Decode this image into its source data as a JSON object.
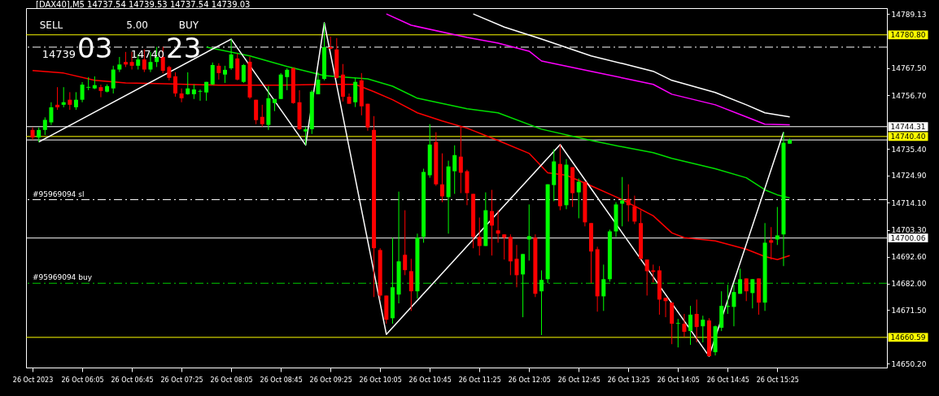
{
  "chart_data": {
    "type": "candlestick",
    "title": "[DAX40],M5  14737.54 14739.53 14737.54 14739.03",
    "x": [
      "2023-10-26T05:25",
      "2023-10-26T05:30",
      "2023-10-26T05:35",
      "2023-10-26T05:40",
      "2023-10-26T05:45",
      "2023-10-26T05:50",
      "2023-10-26T05:55",
      "2023-10-26T06:00",
      "2023-10-26T06:05",
      "2023-10-26T06:10",
      "2023-10-26T06:15",
      "2023-10-26T06:20",
      "2023-10-26T06:25",
      "2023-10-26T06:30",
      "2023-10-26T06:35",
      "2023-10-26T06:40",
      "2023-10-26T06:45",
      "2023-10-26T06:50",
      "2023-10-26T06:55",
      "2023-10-26T07:00",
      "2023-10-26T07:05",
      "2023-10-26T07:10",
      "2023-10-26T07:15",
      "2023-10-26T07:20",
      "2023-10-26T07:25",
      "2023-10-26T07:30",
      "2023-10-26T07:35",
      "2023-10-26T07:40",
      "2023-10-26T07:45",
      "2023-10-26T07:50",
      "2023-10-26T07:55",
      "2023-10-26T08:00",
      "2023-10-26T08:05",
      "2023-10-26T08:10",
      "2023-10-26T08:15",
      "2023-10-26T08:20",
      "2023-10-26T08:25",
      "2023-10-26T08:30",
      "2023-10-26T08:35",
      "2023-10-26T08:40",
      "2023-10-26T08:45",
      "2023-10-26T08:50",
      "2023-10-26T08:55",
      "2023-10-26T09:00",
      "2023-10-26T09:05",
      "2023-10-26T09:10",
      "2023-10-26T09:15",
      "2023-10-26T09:20",
      "2023-10-26T09:25",
      "2023-10-26T09:30",
      "2023-10-26T09:35",
      "2023-10-26T09:40",
      "2023-10-26T09:45",
      "2023-10-26T09:50",
      "2023-10-26T09:55",
      "2023-10-26T10:00",
      "2023-10-26T10:05",
      "2023-10-26T10:10",
      "2023-10-26T10:15",
      "2023-10-26T10:20",
      "2023-10-26T10:25",
      "2023-10-26T10:30",
      "2023-10-26T10:35",
      "2023-10-26T10:40",
      "2023-10-26T10:45",
      "2023-10-26T10:50",
      "2023-10-26T10:55",
      "2023-10-26T11:00",
      "2023-10-26T11:05",
      "2023-10-26T11:10",
      "2023-10-26T11:15",
      "2023-10-26T11:20",
      "2023-10-26T11:25",
      "2023-10-26T11:30",
      "2023-10-26T11:35",
      "2023-10-26T11:40",
      "2023-10-26T11:45",
      "2023-10-26T11:50",
      "2023-10-26T11:55",
      "2023-10-26T12:00",
      "2023-10-26T12:05",
      "2023-10-26T12:10",
      "2023-10-26T12:15",
      "2023-10-26T12:20",
      "2023-10-26T12:25",
      "2023-10-26T12:30",
      "2023-10-26T12:35",
      "2023-10-26T12:40",
      "2023-10-26T12:45",
      "2023-10-26T12:50",
      "2023-10-26T12:55",
      "2023-10-26T13:00",
      "2023-10-26T13:05",
      "2023-10-26T13:10",
      "2023-10-26T13:15",
      "2023-10-26T13:20",
      "2023-10-26T13:25",
      "2023-10-26T13:30",
      "2023-10-26T13:35",
      "2023-10-26T13:40",
      "2023-10-26T13:45",
      "2023-10-26T13:50",
      "2023-10-26T13:55",
      "2023-10-26T14:00",
      "2023-10-26T14:05",
      "2023-10-26T14:10",
      "2023-10-26T14:15",
      "2023-10-26T14:20",
      "2023-10-26T14:25",
      "2023-10-26T14:30",
      "2023-10-26T14:35",
      "2023-10-26T14:40",
      "2023-10-26T14:45",
      "2023-10-26T14:50",
      "2023-10-26T14:55",
      "2023-10-26T15:00",
      "2023-10-26T15:05",
      "2023-10-26T15:10",
      "2023-10-26T15:15",
      "2023-10-26T15:20",
      "2023-10-26T15:25",
      "2023-10-26T15:30",
      "2023-10-26T15:35"
    ],
    "ohlc": [
      [
        14743,
        14744,
        14739,
        14740
      ],
      [
        14740,
        14744,
        14738.2,
        14743
      ],
      [
        14743,
        14748,
        14741,
        14747
      ],
      [
        14746,
        14754,
        14745,
        14752
      ],
      [
        14753,
        14760,
        14751,
        14752
      ],
      [
        14753,
        14760,
        14752,
        14754
      ],
      [
        14755,
        14758,
        14751,
        14753
      ],
      [
        14752,
        14758,
        14751,
        14755
      ],
      [
        14755,
        14762,
        14754,
        14761
      ],
      [
        14759.8,
        14764,
        14758.8,
        14760.1
      ],
      [
        14759.5,
        14764.3,
        14759.2,
        14760.8
      ],
      [
        14760,
        14761,
        14756,
        14758.5
      ],
      [
        14758.2,
        14761.1,
        14757.9,
        14760.4
      ],
      [
        14759.5,
        14768.5,
        14757.5,
        14767
      ],
      [
        14767,
        14772,
        14766,
        14769
      ],
      [
        14770,
        14774,
        14768,
        14769
      ],
      [
        14770,
        14774,
        14767,
        14768.5
      ],
      [
        14768.5,
        14773,
        14767,
        14771
      ],
      [
        14771,
        14775,
        14766,
        14767
      ],
      [
        14767,
        14774,
        14766,
        14770
      ],
      [
        14770,
        14776,
        14768,
        14772
      ],
      [
        14772,
        14776,
        14765.5,
        14766.5
      ],
      [
        14768,
        14768.5,
        14762.7,
        14763.7
      ],
      [
        14764.3,
        14765.9,
        14756.2,
        14757.5
      ],
      [
        14757.5,
        14759.5,
        14754,
        14755.6
      ],
      [
        14757.2,
        14765.9,
        14757,
        14759.5
      ],
      [
        14757.2,
        14761.1,
        14755.3,
        14759.1
      ],
      [
        14758.2,
        14759.1,
        14754.6,
        14758.5
      ],
      [
        14757.9,
        14762.1,
        14754.6,
        14762.1
      ],
      [
        14761.1,
        14769.8,
        14760.8,
        14768.8
      ],
      [
        14768.5,
        14769.5,
        14763,
        14765.6
      ],
      [
        14765,
        14768.5,
        14761.7,
        14766.9
      ],
      [
        14767.5,
        14779.1,
        14766.9,
        14773
      ],
      [
        14771.4,
        14773.3,
        14762.7,
        14763
      ],
      [
        14762.1,
        14769.2,
        14761.7,
        14768.8
      ],
      [
        14770.1,
        14772.1,
        14755.3,
        14755.9
      ],
      [
        14755,
        14755,
        14745.3,
        14746.9
      ],
      [
        14748.2,
        14753,
        14744.3,
        14745.3
      ],
      [
        14745,
        14760.4,
        14743,
        14755.6
      ],
      [
        14753.7,
        14755.3,
        14750.5,
        14755.3
      ],
      [
        14755.3,
        14765.6,
        14755.3,
        14765
      ],
      [
        14764,
        14767.5,
        14758.8,
        14766.9
      ],
      [
        14767.5,
        14767.9,
        14753.4,
        14753.7
      ],
      [
        14754,
        14758.8,
        14743,
        14743.3
      ],
      [
        14742.4,
        14744.3,
        14737,
        14743.3
      ],
      [
        14743.3,
        14758.8,
        14741.4,
        14758.2
      ],
      [
        14757.2,
        14765.9,
        14757.2,
        14763
      ],
      [
        14763.3,
        14785.6,
        14762.7,
        14775.9
      ],
      [
        14775.9,
        14780.1,
        14775,
        14775.3
      ],
      [
        14775,
        14779.5,
        14763.3,
        14763.7
      ],
      [
        14765,
        14769.2,
        14754.3,
        14756.2
      ],
      [
        14756.2,
        14757.5,
        14753.4,
        14753.4
      ],
      [
        14754,
        14763.7,
        14752.1,
        14762.1
      ],
      [
        14762.7,
        14765.6,
        14748.8,
        14752.4
      ],
      [
        14753.4,
        14753.4,
        14742.7,
        14744
      ],
      [
        14743,
        14748.5,
        14676.6,
        14696
      ],
      [
        14695.3,
        14696,
        14675.6,
        14677.2
      ],
      [
        14677.2,
        14677.2,
        14666,
        14667.6
      ],
      [
        14668.2,
        14700.2,
        14666,
        14680.5
      ],
      [
        14677.6,
        14718.5,
        14674.1,
        14690.8
      ],
      [
        14693.4,
        14711.1,
        14685.3,
        14687.3
      ],
      [
        14686.9,
        14691.8,
        14671.1,
        14678.9
      ],
      [
        14678.9,
        14701.8,
        14676,
        14700.2
      ],
      [
        14700.5,
        14727.6,
        14698.2,
        14726.3
      ],
      [
        14725,
        14745.3,
        14724,
        14737.2
      ],
      [
        14738.2,
        14742.1,
        14720.8,
        14721.4
      ],
      [
        14721.4,
        14733.7,
        14714.3,
        14716.6
      ],
      [
        14716.3,
        14730.8,
        14701.8,
        14728.5
      ],
      [
        14726.6,
        14736.9,
        14717.6,
        14733
      ],
      [
        14732.4,
        14744.6,
        14717.9,
        14726
      ],
      [
        14726.6,
        14727.2,
        14713.1,
        14717.9
      ],
      [
        14717.6,
        14717.6,
        14696,
        14700.5
      ],
      [
        14700.5,
        14708.2,
        14693.1,
        14696.9
      ],
      [
        14696.9,
        14718.2,
        14696.9,
        14711.1
      ],
      [
        14710.8,
        14719.2,
        14693.1,
        14705
      ],
      [
        14703.1,
        14711.1,
        14698.2,
        14701.8
      ],
      [
        14701.5,
        14701.5,
        14691.5,
        14700.2
      ],
      [
        14700.5,
        14701.5,
        14685.3,
        14690.8
      ],
      [
        14691.8,
        14697.3,
        14680.5,
        14685.3
      ],
      [
        14685.6,
        14693.7,
        14668.6,
        14693.7
      ],
      [
        14699.5,
        14713.4,
        14691.1,
        14700.8
      ],
      [
        14700.2,
        14701.5,
        14676.6,
        14677.9
      ],
      [
        14678.9,
        14687.2,
        14661.5,
        14683.4
      ],
      [
        14683.7,
        14721.4,
        14682.1,
        14721.4
      ],
      [
        14721.1,
        14735.3,
        14714.7,
        14730.5
      ],
      [
        14729.5,
        14737.2,
        14711.1,
        14712.7
      ],
      [
        14713.1,
        14731.4,
        14711.5,
        14729.2
      ],
      [
        14728.2,
        14728.2,
        14712.4,
        14717.9
      ],
      [
        14718.2,
        14723.7,
        14707.9,
        14722.4
      ],
      [
        14722.4,
        14722.4,
        14704.7,
        14706.3
      ],
      [
        14706,
        14706,
        14682.1,
        14694.7
      ],
      [
        14695.6,
        14696.6,
        14670.8,
        14676.9
      ],
      [
        14676.9,
        14689.5,
        14671.1,
        14683.7
      ],
      [
        14683.7,
        14703.4,
        14682.7,
        14702.7
      ],
      [
        14702.7,
        14714.3,
        14700.5,
        14713.4
      ],
      [
        14713.7,
        14724.3,
        14704.7,
        14715
      ],
      [
        14715.6,
        14721.4,
        14706.6,
        14713.1
      ],
      [
        14712.7,
        14716.9,
        14705.6,
        14706.6
      ],
      [
        14706,
        14711.1,
        14691.5,
        14691.8
      ],
      [
        14691.5,
        14691.5,
        14677.2,
        14686.9
      ],
      [
        14687.2,
        14689.5,
        14682.4,
        14686.6
      ],
      [
        14687.2,
        14688.9,
        14669.6,
        14675.6
      ],
      [
        14676.3,
        14676.3,
        14668.6,
        14675
      ],
      [
        14674.4,
        14674.4,
        14657.9,
        14666
      ],
      [
        14666,
        14667.9,
        14656.6,
        14666.3
      ],
      [
        14666,
        14669.9,
        14660.8,
        14662.8
      ],
      [
        14663.1,
        14673.1,
        14657.6,
        14669.6
      ],
      [
        14669.9,
        14675.6,
        14658.6,
        14664.7
      ],
      [
        14665,
        14669.2,
        14658.6,
        14667.6
      ],
      [
        14667.3,
        14668.2,
        14653.1,
        14653.1
      ],
      [
        14654.7,
        14665.3,
        14653.4,
        14665
      ],
      [
        14664.4,
        14678.9,
        14663.1,
        14673.1
      ],
      [
        14672.7,
        14681.5,
        14669.9,
        14673.1
      ],
      [
        14672.7,
        14681.5,
        14665,
        14678.6
      ],
      [
        14677.9,
        14687.9,
        14677.9,
        14683.7
      ],
      [
        14684,
        14684,
        14675,
        14678.9
      ],
      [
        14678.2,
        14683.7,
        14672.1,
        14683.7
      ],
      [
        14684,
        14684,
        14669.6,
        14674.4
      ],
      [
        14674.4,
        14706,
        14671.1,
        14698.2
      ],
      [
        14699.2,
        14704.4,
        14691.5,
        14698.2
      ],
      [
        14699.5,
        14712.4,
        14697.3,
        14701.1
      ],
      [
        14701.5,
        14742.1,
        14688.9,
        14737.9
      ],
      [
        14737.54,
        14739.53,
        14737.54,
        14739.03
      ]
    ],
    "colors": [
      "#ff0000",
      "#00ff00",
      "#00ff00",
      "#00ff00",
      "#ff0000",
      "#00ff00",
      "#ff0000",
      "#00ff00",
      "#00ff00",
      "#00ff00",
      "#00ff00",
      "#ff0000",
      "#00ff00",
      "#00ff00",
      "#00ff00",
      "#ff0000",
      "#ff0000",
      "#00ff00",
      "#ff0000",
      "#00ff00",
      "#00ff00",
      "#ff0000",
      "#ff0000",
      "#ff0000",
      "#ff0000",
      "#00ff00",
      "#00ff00",
      "#00ff00",
      "#00ff00",
      "#00ff00",
      "#ff0000",
      "#00ff00",
      "#00ff00",
      "#ff0000",
      "#00ff00",
      "#ff0000",
      "#ff0000",
      "#ff0000",
      "#00ff00",
      "#00ff00",
      "#00ff00",
      "#00ff00",
      "#ff0000",
      "#ff0000",
      "#00ff00",
      "#00ff00",
      "#00ff00",
      "#00ff00",
      "#ff0000",
      "#ff0000",
      "#ff0000",
      "#ff0000",
      "#00ff00",
      "#ff0000",
      "#ff0000",
      "#ff0000",
      "#ff0000",
      "#ff0000",
      "#00ff00",
      "#00ff00",
      "#ff0000",
      "#ff0000",
      "#00ff00",
      "#00ff00",
      "#00ff00",
      "#ff0000",
      "#ff0000",
      "#00ff00",
      "#00ff00",
      "#ff0000",
      "#ff0000",
      "#ff0000",
      "#ff0000",
      "#00ff00",
      "#ff0000",
      "#ff0000",
      "#ff0000",
      "#ff0000",
      "#ff0000",
      "#00ff00",
      "#00ff00",
      "#ff0000",
      "#00ff00",
      "#00ff00",
      "#00ff00",
      "#ff0000",
      "#00ff00",
      "#ff0000",
      "#00ff00",
      "#ff0000",
      "#ff0000",
      "#ff0000",
      "#00ff00",
      "#00ff00",
      "#00ff00",
      "#00ff00",
      "#ff0000",
      "#ff0000",
      "#ff0000",
      "#ff0000",
      "#ff0000",
      "#ff0000",
      "#ff0000",
      "#ff0000",
      "#00ff00",
      "#ff0000",
      "#00ff00",
      "#ff0000",
      "#00ff00",
      "#ff0000",
      "#00ff00",
      "#00ff00",
      "#00ff00",
      "#00ff00",
      "#00ff00",
      "#ff0000",
      "#00ff00",
      "#ff0000",
      "#00ff00",
      "#ff0000",
      "#00ff00",
      "#00ff00",
      "#00ff00"
    ],
    "series": [
      {
        "type": "line",
        "color": "#ff0000",
        "line_style": "solid",
        "x": [
          "2023-10-26T05:25",
          "2023-10-26T05:50",
          "2023-10-26T06:15",
          "2023-10-26T06:40",
          "2023-10-26T07:05",
          "2023-10-26T07:55",
          "2023-10-26T08:45",
          "2023-10-26T09:20",
          "2023-10-26T09:45",
          "2023-10-26T10:00",
          "2023-10-26T10:15",
          "2023-10-26T10:35",
          "2023-10-26T10:55",
          "2023-10-26T11:15",
          "2023-10-26T11:40",
          "2023-10-26T12:05",
          "2023-10-26T12:20",
          "2023-10-26T12:35",
          "2023-10-26T12:55",
          "2023-10-26T13:20",
          "2023-10-26T13:45",
          "2023-10-26T14:00",
          "2023-10-26T14:10",
          "2023-10-26T14:35",
          "2023-10-26T15:00",
          "2023-10-26T15:15",
          "2023-10-26T15:25",
          "2023-10-26T15:35"
        ],
        "values": [
          14766.6,
          14765.6,
          14762.7,
          14761.7,
          14761.4,
          14760.8,
          14760.8,
          14761.1,
          14761.1,
          14758.2,
          14755,
          14749.8,
          14746.6,
          14743.7,
          14738.8,
          14733.7,
          14726,
          14725,
          14720.8,
          14715.3,
          14708.9,
          14702.1,
          14700.2,
          14698.9,
          14695.6,
          14692.7,
          14691.5,
          14693.1
        ]
      },
      {
        "type": "line",
        "color": "#00e000",
        "line_style": "solid",
        "x": [
          "2023-10-26T07:45",
          "2023-10-26T08:20",
          "2023-10-26T08:50",
          "2023-10-26T09:20",
          "2023-10-26T09:55",
          "2023-10-26T10:15",
          "2023-10-26T10:35",
          "2023-10-26T11:15",
          "2023-10-26T11:40",
          "2023-10-26T12:15",
          "2023-10-26T12:55",
          "2023-10-26T13:20",
          "2023-10-26T13:45",
          "2023-10-26T14:00",
          "2023-10-26T14:35",
          "2023-10-26T15:00",
          "2023-10-26T15:15",
          "2023-10-26T15:25",
          "2023-10-26T15:35"
        ],
        "values": [
          14775.9,
          14772.4,
          14768.2,
          14764.6,
          14763.3,
          14760.4,
          14755.6,
          14751.4,
          14749.8,
          14743.3,
          14738.8,
          14736.3,
          14734,
          14731.7,
          14727.6,
          14724,
          14719.2,
          14717.2,
          14716
        ]
      },
      {
        "type": "line",
        "color": "#ff00ff",
        "line_style": "solid",
        "x": [
          "2023-10-26T10:10",
          "2023-10-26T10:30",
          "2023-10-26T11:15",
          "2023-10-26T11:40",
          "2023-10-26T12:05",
          "2023-10-26T12:15",
          "2023-10-26T12:55",
          "2023-10-26T13:20",
          "2023-10-26T13:45",
          "2023-10-26T14:00",
          "2023-10-26T14:35",
          "2023-10-26T15:00",
          "2023-10-26T15:15",
          "2023-10-26T15:35"
        ],
        "values": [
          14789.1,
          14784.6,
          14779.8,
          14777.5,
          14774.3,
          14770.4,
          14766.3,
          14763.7,
          14761.1,
          14757.2,
          14753,
          14748.2,
          14745.3,
          14745
        ]
      },
      {
        "type": "line",
        "color": "#ffffff",
        "line_style": "solid",
        "x": [
          "2023-10-26T11:20",
          "2023-10-26T11:45",
          "2023-10-26T12:15",
          "2023-10-26T12:55",
          "2023-10-26T13:20",
          "2023-10-26T13:45",
          "2023-10-26T14:00",
          "2023-10-26T14:35",
          "2023-10-26T15:00",
          "2023-10-26T15:15",
          "2023-10-26T15:35"
        ],
        "values": [
          14789.1,
          14783.9,
          14779.1,
          14772.4,
          14769.4,
          14766.3,
          14762.7,
          14757.9,
          14753,
          14749.8,
          14748.2
        ]
      },
      {
        "type": "line",
        "color": "#ffffff",
        "line_style": "solid",
        "x": [
          "2023-10-26T05:30",
          "2023-10-26T08:05",
          "2023-10-26T09:05",
          "2023-10-26T09:20",
          "2023-10-26T10:10",
          "2023-10-26T12:30",
          "2023-10-26T14:30",
          "2023-10-26T15:30"
        ],
        "values": [
          14738.2,
          14779.1,
          14737,
          14785.6,
          14661.8,
          14737.2,
          14653.1,
          14742.1
        ]
      }
    ],
    "ref_lines": [
      {
        "axis": "y",
        "value": 14780.8,
        "label": "14780.80",
        "color": "#ffff00",
        "line_style": "solid"
      },
      {
        "axis": "y",
        "value": 14775.9,
        "label": null,
        "color": "#ffffff",
        "line_style": "dashed"
      },
      {
        "axis": "y",
        "value": 14744.31,
        "label": "14744.31",
        "color": "#ffffff",
        "line_style": "solid"
      },
      {
        "axis": "y",
        "value": 14740.4,
        "label": "14740.40",
        "color": "#ffff00",
        "line_style": "solid"
      },
      {
        "axis": "y",
        "value": 14739.03,
        "label": null,
        "color": "#ffffff",
        "line_style": "solid"
      },
      {
        "axis": "y",
        "value": 14715.3,
        "label": "#95969094 sl",
        "color": "#ffffff",
        "line_style": "dashed"
      },
      {
        "axis": "y",
        "value": 14700.06,
        "label": "14700.06",
        "color": "#ffffff",
        "line_style": "solid"
      },
      {
        "axis": "y",
        "value": 14682.1,
        "label": "#95969094 buy",
        "color": "#00c800",
        "line_style": "dashed"
      },
      {
        "axis": "y",
        "value": 14660.59,
        "label": "14660.59",
        "color": "#ffff00",
        "line_style": "solid"
      }
    ],
    "annotations": [
      "SELL",
      "5.00",
      "BUY",
      "14739",
      "03",
      "14740",
      "23"
    ],
    "xlim": [
      "2023-10-26T05:23",
      "2023-10-26T16:50"
    ],
    "xticks": [
      {
        "value": "2023-10-26T05:25",
        "label": "26 Oct 2023"
      },
      {
        "value": "2023-10-26T06:05",
        "label": "26 Oct 06:05"
      },
      {
        "value": "2023-10-26T06:45",
        "label": "26 Oct 06:45"
      },
      {
        "value": "2023-10-26T07:25",
        "label": "26 Oct 07:25"
      },
      {
        "value": "2023-10-26T08:05",
        "label": "26 Oct 08:05"
      },
      {
        "value": "2023-10-26T08:45",
        "label": "26 Oct 08:45"
      },
      {
        "value": "2023-10-26T09:25",
        "label": "26 Oct 09:25"
      },
      {
        "value": "2023-10-26T10:05",
        "label": "26 Oct 10:05"
      },
      {
        "value": "2023-10-26T10:45",
        "label": "26 Oct 10:45"
      },
      {
        "value": "2023-10-26T11:25",
        "label": "26 Oct 11:25"
      },
      {
        "value": "2023-10-26T12:05",
        "label": "26 Oct 12:05"
      },
      {
        "value": "2023-10-26T12:45",
        "label": "26 Oct 12:45"
      },
      {
        "value": "2023-10-26T13:25",
        "label": "26 Oct 13:25"
      },
      {
        "value": "2023-10-26T14:05",
        "label": "26 Oct 14:05"
      },
      {
        "value": "2023-10-26T14:45",
        "label": "26 Oct 14:45"
      },
      {
        "value": "2023-10-26T15:25",
        "label": "26 Oct 15:25"
      }
    ],
    "ylim": [
      14648.6,
      14791.4
    ],
    "yticks": [
      {
        "value": 14789.13,
        "label": "14789.13"
      },
      {
        "value": 14767.5,
        "label": "14767.50"
      },
      {
        "value": 14756.7,
        "label": "14756.70"
      },
      {
        "value": 14735.4,
        "label": "14735.40"
      },
      {
        "value": 14724.9,
        "label": "14724.90"
      },
      {
        "value": 14714.1,
        "label": "14714.10"
      },
      {
        "value": 14703.3,
        "label": "14703.30"
      },
      {
        "value": 14692.6,
        "label": "14692.60"
      },
      {
        "value": 14682,
        "label": "14682.00"
      },
      {
        "value": 14671.5,
        "label": "14671.50"
      },
      {
        "value": 14650.2,
        "label": "14650.20"
      }
    ],
    "grid": false
  }
}
